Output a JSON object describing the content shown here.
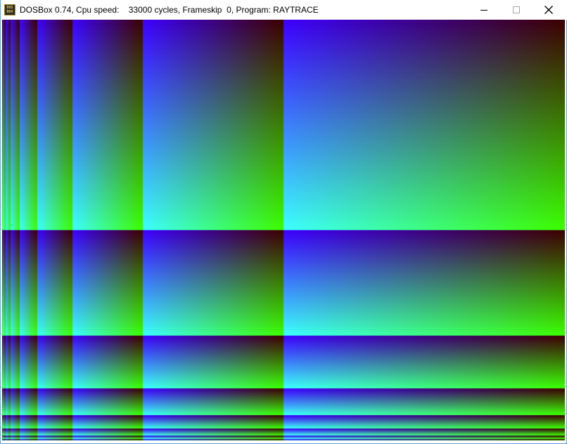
{
  "window": {
    "title": "DOSBox 0.74, Cpu speed:    33000 cycles, Frameskip  0, Program: RAYTRACE",
    "app_icon_text": [
      "DOS",
      "BOX"
    ],
    "buttons": {
      "minimize": "minimize-icon",
      "maximize": "maximize-icon",
      "close": "close-icon"
    }
  },
  "raytrace": {
    "colors": {
      "top_left": "#3c00ff",
      "top_right": "#3c0000",
      "bottom_left": "#3cffff",
      "bottom_right": "#3cff00"
    }
  }
}
